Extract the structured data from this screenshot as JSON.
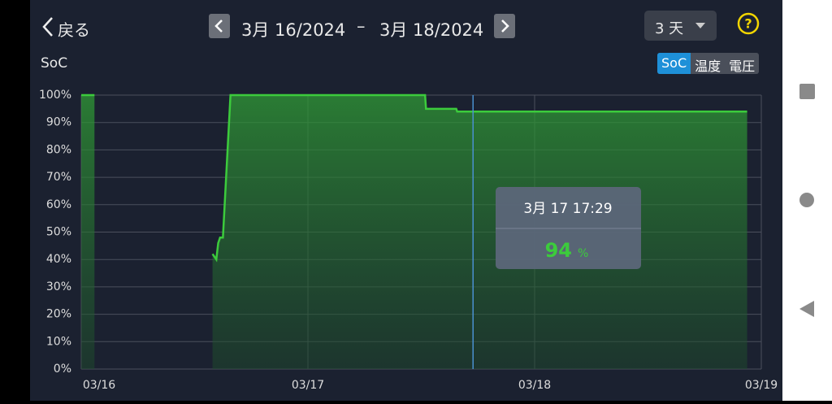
{
  "header": {
    "back": "戻る",
    "date_from": "3月 16/2024",
    "separator": "–",
    "date_to": "3月 18/2024",
    "range": "3 天"
  },
  "tabs": [
    "SoC",
    "温度",
    "電圧"
  ],
  "chart_data": {
    "type": "line",
    "y_label": "SoC",
    "color": "#3ccb3c",
    "x": [
      0,
      1.4,
      7,
      13.9,
      14.3,
      14.5,
      14.7,
      15.0,
      15.8,
      36.4,
      36.5,
      39.7,
      39.8,
      70.5
    ],
    "values": [
      100,
      100,
      null,
      42,
      40,
      46,
      48,
      48,
      100,
      100,
      95,
      95,
      94,
      94
    ],
    "xlim": [
      0,
      72
    ],
    "xticks": [
      {
        "value": 0,
        "label": "03/16"
      },
      {
        "value": 24,
        "label": "03/17"
      },
      {
        "value": 48,
        "label": "03/18"
      },
      {
        "value": 72,
        "label": "03/19"
      }
    ],
    "ylim": [
      0,
      100
    ],
    "yticks": [
      {
        "value": 0,
        "label": "0%"
      },
      {
        "value": 10,
        "label": "10%"
      },
      {
        "value": 20,
        "label": "20%"
      },
      {
        "value": 30,
        "label": "30%"
      },
      {
        "value": 40,
        "label": "40%"
      },
      {
        "value": 50,
        "label": "50%"
      },
      {
        "value": 60,
        "label": "60%"
      },
      {
        "value": 70,
        "label": "70%"
      },
      {
        "value": 80,
        "label": "80%"
      },
      {
        "value": 90,
        "label": "90%"
      },
      {
        "value": 100,
        "label": "100%"
      }
    ],
    "grid": true,
    "cursor_x": 41.48,
    "tooltip": {
      "time": "3月 17 17:29",
      "value": 94,
      "unit": "%"
    }
  }
}
